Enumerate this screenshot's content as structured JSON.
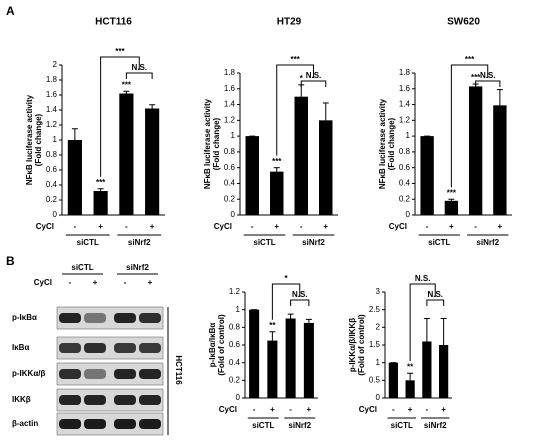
{
  "panel_labels": [
    "A",
    "B"
  ],
  "chart_data": [
    {
      "type": "bar",
      "title": "HCT116",
      "ylabel": [
        "NFκB luciferase activity",
        "(Fold change)"
      ],
      "x_label": "CyCl",
      "categories": [
        "-",
        "+",
        "-",
        "+"
      ],
      "groups": [
        "siCTL",
        "siNrf2"
      ],
      "values": [
        1.0,
        0.32,
        1.62,
        1.42
      ],
      "errors": [
        0.15,
        0.03,
        0.03,
        0.05
      ],
      "bar_labels": [
        null,
        "***",
        "***",
        null
      ],
      "brackets": [
        "***",
        "N.S."
      ],
      "color": "#000000",
      "ylim": [
        0,
        2
      ],
      "yticks": [
        0,
        0.2,
        0.4,
        0.6,
        0.8,
        1,
        1.2,
        1.4,
        1.6,
        1.8,
        2
      ]
    },
    {
      "type": "bar",
      "title": "HT29",
      "ylabel": [
        "NFκB luciferase activity",
        "(Fold change)"
      ],
      "x_label": "CyCl",
      "categories": [
        "-",
        "+",
        "-",
        "+"
      ],
      "groups": [
        "siCTL",
        "siNrf2"
      ],
      "values": [
        1.0,
        0.55,
        1.5,
        1.2
      ],
      "errors": [
        0.0,
        0.05,
        0.15,
        0.22
      ],
      "bar_labels": [
        null,
        "***",
        "*",
        null
      ],
      "brackets": [
        "***",
        "N.S."
      ],
      "color": "#000000",
      "ylim": [
        0,
        1.8
      ],
      "yticks": [
        0,
        0.2,
        0.4,
        0.6,
        0.8,
        1,
        1.2,
        1.4,
        1.6,
        1.8
      ]
    },
    {
      "type": "bar",
      "title": "SW620",
      "ylabel": [
        "NFκB luciferase activity",
        "(Fold change)"
      ],
      "x_label": "CyCl",
      "categories": [
        "-",
        "+",
        "-",
        "+"
      ],
      "groups": [
        "siCTL",
        "siNrf2"
      ],
      "values": [
        1.0,
        0.18,
        1.63,
        1.39
      ],
      "errors": [
        0.0,
        0.02,
        0.03,
        0.2
      ],
      "bar_labels": [
        null,
        "***",
        "***",
        null
      ],
      "brackets": [
        "***",
        "N.S."
      ],
      "color": "#000000",
      "ylim": [
        0,
        1.8
      ],
      "yticks": [
        0,
        0.2,
        0.4,
        0.6,
        0.8,
        1,
        1.2,
        1.4,
        1.6,
        1.8
      ]
    },
    {
      "type": "bar",
      "ylabel": [
        "p-IκBα/IκBα",
        "(Fold of control)"
      ],
      "x_label": "CyCl",
      "categories": [
        "-",
        "+",
        "-",
        "+"
      ],
      "groups": [
        "siCTL",
        "siNrf2"
      ],
      "values": [
        1.0,
        0.65,
        0.9,
        0.85
      ],
      "errors": [
        0.0,
        0.1,
        0.05,
        0.04
      ],
      "bar_labels": [
        null,
        "**",
        null,
        null
      ],
      "brackets": [
        "*",
        "N.S."
      ],
      "color": "#000000",
      "ylim": [
        0,
        1.2
      ],
      "yticks": [
        0,
        0.2,
        0.4,
        0.6,
        0.8,
        1,
        1.2
      ]
    },
    {
      "type": "bar",
      "ylabel": [
        "p-IKKα/β/IKKβ",
        "(Fold of control)"
      ],
      "x_label": "CyCl",
      "categories": [
        "-",
        "+",
        "-",
        "+"
      ],
      "groups": [
        "siCTL",
        "siNrf2"
      ],
      "values": [
        1.0,
        0.5,
        1.6,
        1.5
      ],
      "errors": [
        0.0,
        0.2,
        0.65,
        0.75
      ],
      "bar_labels": [
        null,
        "**",
        null,
        null
      ],
      "brackets": [
        "N.S.",
        "N.S."
      ],
      "color": "#000000",
      "ylim": [
        0,
        3
      ],
      "yticks": [
        0,
        0.5,
        1,
        1.5,
        2,
        2.5,
        3
      ]
    }
  ],
  "blot": {
    "groups": [
      "siCTL",
      "siNrf2"
    ],
    "x_label": "CyCl",
    "signs": [
      "-",
      "+",
      "-",
      "+"
    ],
    "rows": [
      "p-IκBα",
      "IκBα",
      "p-IKKα/β",
      "IKKβ",
      "β-actin"
    ],
    "cell_line": "HCT116"
  }
}
